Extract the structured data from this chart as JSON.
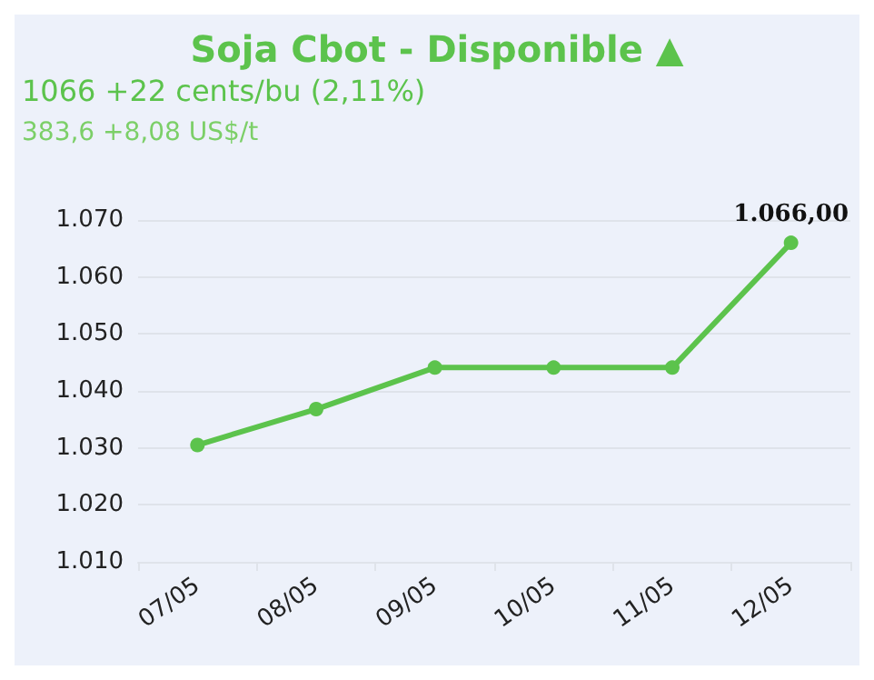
{
  "chart_data": {
    "type": "line",
    "title": "Soja Cbot - Disponible ▲",
    "subtitle": "1066 +22 cents/bu (2,11%)",
    "annotations": [
      "383,6 +8,08 US$/t"
    ],
    "categories": [
      "07/05",
      "08/05",
      "09/05",
      "10/05",
      "11/05",
      "12/05"
    ],
    "series": [
      {
        "color": "#5cc34c",
        "values": [
          1030.5,
          1036.8,
          1044.1,
          1044.1,
          1044.1,
          1066
        ],
        "value_labels": [
          null,
          null,
          null,
          null,
          null,
          "1.066,00"
        ]
      }
    ],
    "ylim": [
      1010,
      1070
    ],
    "yticks": [
      {
        "value": 1010,
        "label": "1.010"
      },
      {
        "value": 1020,
        "label": "1.020"
      },
      {
        "value": 1030,
        "label": "1.030"
      },
      {
        "value": 1040,
        "label": "1.040"
      },
      {
        "value": 1050,
        "label": "1.050"
      },
      {
        "value": 1060,
        "label": "1.060"
      },
      {
        "value": 1070,
        "label": "1.070"
      }
    ],
    "grid": "y",
    "marker": "circle",
    "line_style": "solid"
  }
}
